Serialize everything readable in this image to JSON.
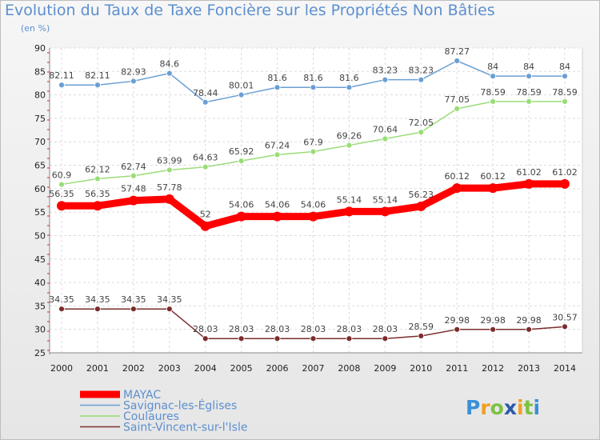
{
  "chart_data": {
    "type": "line",
    "title": "Evolution du Taux de Taxe Foncière sur les Propriétés Non Bâties",
    "ylabel": "(en %)",
    "xlabel": "",
    "ylim": [
      25,
      90
    ],
    "yticks": [
      25,
      30,
      35,
      40,
      45,
      50,
      55,
      60,
      65,
      70,
      75,
      80,
      85,
      90
    ],
    "grid": true,
    "x": [
      "2000",
      "2001",
      "2002",
      "2003",
      "2004",
      "2005",
      "2006",
      "2007",
      "2008",
      "2009",
      "2010",
      "2011",
      "2012",
      "2013",
      "2014"
    ],
    "series": [
      {
        "name": "MAYAC",
        "color": "#ff0000",
        "bold": true,
        "values": [
          56.35,
          56.35,
          57.48,
          57.78,
          52,
          54.06,
          54.06,
          54.06,
          55.14,
          55.14,
          56.23,
          60.12,
          60.12,
          61.02,
          61.02
        ],
        "labels": [
          "56.35",
          "56.35",
          "57.48",
          "57.78",
          "52",
          "54.06",
          "54.06",
          "54.06",
          "55.14",
          "55.14",
          "56.23",
          "60.12",
          "60.12",
          "61.02",
          "61.02"
        ]
      },
      {
        "name": "Savignac-les-Églises",
        "color": "#6a9fd4",
        "bold": false,
        "values": [
          82.11,
          82.11,
          82.93,
          84.6,
          78.44,
          80.01,
          81.6,
          81.6,
          81.6,
          83.23,
          83.23,
          87.27,
          84,
          84,
          84
        ],
        "labels": [
          "82.11",
          "82.11",
          "82.93",
          "84.6",
          "78.44",
          "80.01",
          "81.6",
          "81.6",
          "81.6",
          "83.23",
          "83.23",
          "87.27",
          "84",
          "84",
          "84"
        ]
      },
      {
        "name": "Coulaures",
        "color": "#99dd77",
        "bold": false,
        "values": [
          60.9,
          62.12,
          62.74,
          63.99,
          64.63,
          65.92,
          67.24,
          67.9,
          69.26,
          70.64,
          72.05,
          77.05,
          78.59,
          78.59,
          78.59
        ],
        "labels": [
          "60.9",
          "62.12",
          "62.74",
          "63.99",
          "64.63",
          "65.92",
          "67.24",
          "67.9",
          "69.26",
          "70.64",
          "72.05",
          "77.05",
          "78.59",
          "78.59",
          "78.59"
        ]
      },
      {
        "name": "Saint-Vincent-sur-l'Isle",
        "color": "#7b2c2c",
        "bold": false,
        "values": [
          34.35,
          34.35,
          34.35,
          34.35,
          28.03,
          28.03,
          28.03,
          28.03,
          28.03,
          28.03,
          28.59,
          29.98,
          29.98,
          29.98,
          30.57
        ],
        "labels": [
          "34.35",
          "34.35",
          "34.35",
          "34.35",
          "28.03",
          "28.03",
          "28.03",
          "28.03",
          "28.03",
          "28.03",
          "28.59",
          "29.98",
          "29.98",
          "29.98",
          "30.57"
        ]
      }
    ],
    "legend_position": "bottom-left"
  },
  "brand": {
    "letters": [
      "P",
      "r",
      "o",
      "x",
      "i",
      "t",
      "i"
    ],
    "colors": [
      "#3a8fd8",
      "#f0a020",
      "#7cc242",
      "#2a5aa8",
      "#f0a020",
      "#7cc242",
      "#3a8fd8"
    ]
  }
}
